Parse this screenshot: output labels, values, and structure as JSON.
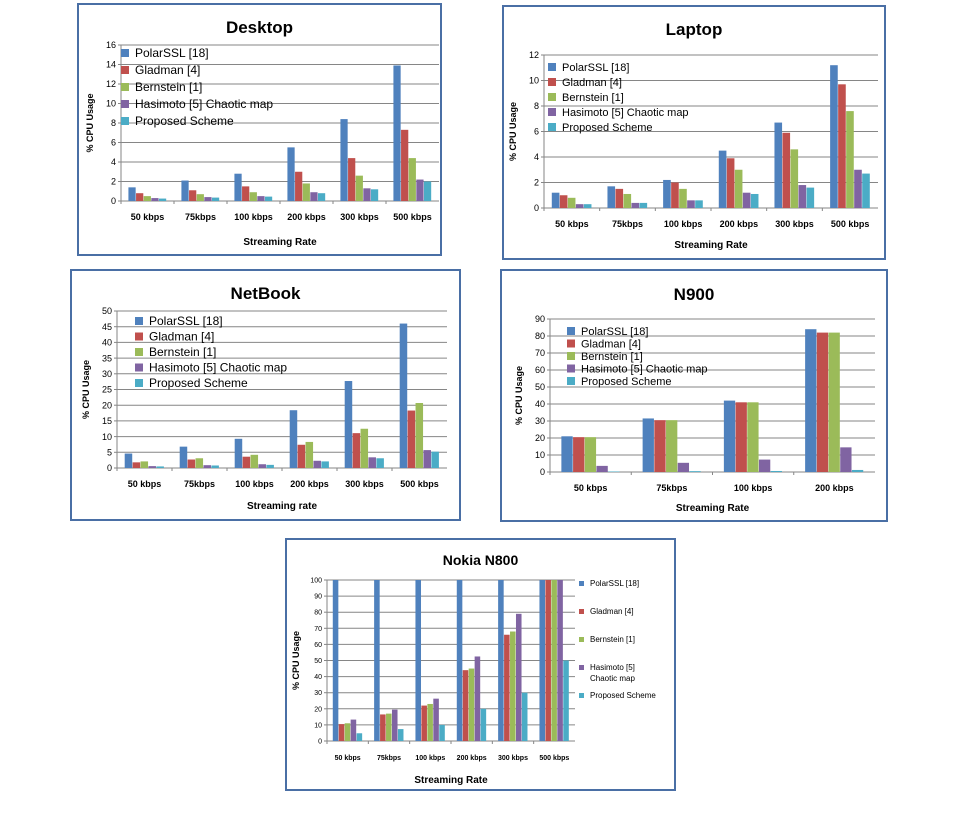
{
  "colors": {
    "PolarSSL [18]": "#4F81BD",
    "Gladman [4]": "#C0504D",
    "Bernstein [1]": "#9BBB59",
    "Hasimoto [5] Chaotic map": "#8064A2",
    "Proposed Scheme": "#4BACC6"
  },
  "chart_data": [
    {
      "type": "bar",
      "title": "Desktop",
      "xlabel": "Streaming Rate",
      "ylabel": "% CPU Usage",
      "ylim": [
        0,
        16
      ],
      "ytick_step": 2,
      "grid": true,
      "legend_position": "top-left",
      "categories": [
        "50 kbps",
        "75kbps",
        "100 kbps",
        "200 kbps",
        "300 kbps",
        "500 kbps"
      ],
      "series": [
        {
          "name": "PolarSSL [18]",
          "values": [
            1.4,
            2.1,
            2.8,
            5.5,
            8.4,
            13.9
          ]
        },
        {
          "name": "Gladman [4]",
          "values": [
            0.8,
            1.1,
            1.5,
            3.0,
            4.4,
            7.3
          ]
        },
        {
          "name": "Bernstein [1]",
          "values": [
            0.5,
            0.7,
            0.9,
            1.8,
            2.6,
            4.4
          ]
        },
        {
          "name": "Hasimoto [5] Chaotic map",
          "values": [
            0.3,
            0.4,
            0.5,
            0.9,
            1.3,
            2.2
          ]
        },
        {
          "name": "Proposed Scheme",
          "values": [
            0.25,
            0.35,
            0.45,
            0.8,
            1.2,
            2.0
          ]
        }
      ]
    },
    {
      "type": "bar",
      "title": "Laptop",
      "xlabel": "Streaming Rate",
      "ylabel": "% CPU Usage",
      "ylim": [
        0,
        12
      ],
      "ytick_step": 2,
      "grid": true,
      "legend_position": "top-left",
      "categories": [
        "50 kbps",
        "75kbps",
        "100 kbps",
        "200 kbps",
        "300 kbps",
        "500 kbps"
      ],
      "series": [
        {
          "name": "PolarSSL [18]",
          "values": [
            1.2,
            1.7,
            2.2,
            4.5,
            6.7,
            11.2
          ]
        },
        {
          "name": "Gladman [4]",
          "values": [
            1.0,
            1.5,
            2.0,
            3.9,
            5.9,
            9.7
          ]
        },
        {
          "name": "Bernstein [1]",
          "values": [
            0.8,
            1.1,
            1.5,
            3.0,
            4.6,
            7.6
          ]
        },
        {
          "name": "Hasimoto [5] Chaotic map",
          "values": [
            0.3,
            0.4,
            0.6,
            1.2,
            1.8,
            3.0
          ]
        },
        {
          "name": "Proposed Scheme",
          "values": [
            0.3,
            0.4,
            0.6,
            1.1,
            1.6,
            2.7
          ]
        }
      ]
    },
    {
      "type": "bar",
      "title": "NetBook",
      "xlabel": "Streaming rate",
      "ylabel": "% CPU Usage",
      "ylim": [
        0,
        50
      ],
      "ytick_step": 5,
      "grid": true,
      "legend_position": "top-left",
      "categories": [
        "50 kbps",
        "75kbps",
        "100 kbps",
        "200 kbps",
        "300 kbps",
        "500 kbps"
      ],
      "series": [
        {
          "name": "PolarSSL [18]",
          "values": [
            4.6,
            6.8,
            9.3,
            18.4,
            27.7,
            46.0
          ]
        },
        {
          "name": "Gladman [4]",
          "values": [
            1.8,
            2.7,
            3.6,
            7.4,
            11.1,
            18.3
          ]
        },
        {
          "name": "Bernstein [1]",
          "values": [
            2.1,
            3.1,
            4.2,
            8.3,
            12.5,
            20.7
          ]
        },
        {
          "name": "Hasimoto [5] Chaotic map",
          "values": [
            0.6,
            0.9,
            1.2,
            2.3,
            3.4,
            5.7
          ]
        },
        {
          "name": "Proposed Scheme",
          "values": [
            0.5,
            0.8,
            1.0,
            2.1,
            3.1,
            5.2
          ]
        }
      ]
    },
    {
      "type": "bar",
      "title": "N900",
      "xlabel": "Streaming Rate",
      "ylabel": "% CPU Usage",
      "ylim": [
        0,
        90
      ],
      "ytick_step": 10,
      "grid": true,
      "legend_position": "top-left",
      "categories": [
        "50 kbps",
        "75kbps",
        "100 kbps",
        "200 kbps"
      ],
      "series": [
        {
          "name": "PolarSSL [18]",
          "values": [
            21,
            31.5,
            42,
            84
          ]
        },
        {
          "name": "Gladman [4]",
          "values": [
            20.5,
            30.5,
            41,
            82
          ]
        },
        {
          "name": "Bernstein [1]",
          "values": [
            20.5,
            30.5,
            41,
            82
          ]
        },
        {
          "name": "Hasimoto [5] Chaotic map",
          "values": [
            3.6,
            5.4,
            7.3,
            14.5
          ]
        },
        {
          "name": "Proposed Scheme",
          "values": [
            0.3,
            0.5,
            0.6,
            1.2
          ]
        }
      ]
    },
    {
      "type": "bar",
      "title": "Nokia N800",
      "xlabel": "Streaming Rate",
      "ylabel": "% CPU Usage",
      "ylim": [
        0,
        100
      ],
      "ytick_step": 10,
      "grid": true,
      "legend_position": "right",
      "categories": [
        "50 kbps",
        "75kbps",
        "100 kbps",
        "200 kbps",
        "300 kbps",
        "500 kbps"
      ],
      "series": [
        {
          "name": "PolarSSL [18]",
          "legend_lines": [
            "PolarSSL [18]"
          ],
          "values": [
            100,
            100,
            100,
            100,
            100,
            100
          ]
        },
        {
          "name": "Gladman [4]",
          "legend_lines": [
            "Gladman [4]"
          ],
          "values": [
            10.5,
            16.5,
            22,
            44,
            66,
            100
          ]
        },
        {
          "name": "Bernstein [1]",
          "legend_lines": [
            "Bernstein [1]"
          ],
          "values": [
            11,
            17,
            23,
            45,
            68,
            100
          ]
        },
        {
          "name": "Hasimoto [5] Chaotic map",
          "legend_lines": [
            "Hasimoto [5]",
            "Chaotic map"
          ],
          "values": [
            13.3,
            19.5,
            26.3,
            52.5,
            79,
            100
          ]
        },
        {
          "name": "Proposed Scheme",
          "legend_lines": [
            "Proposed Scheme"
          ],
          "values": [
            4.8,
            7.4,
            10,
            20,
            30,
            50
          ]
        }
      ]
    }
  ]
}
